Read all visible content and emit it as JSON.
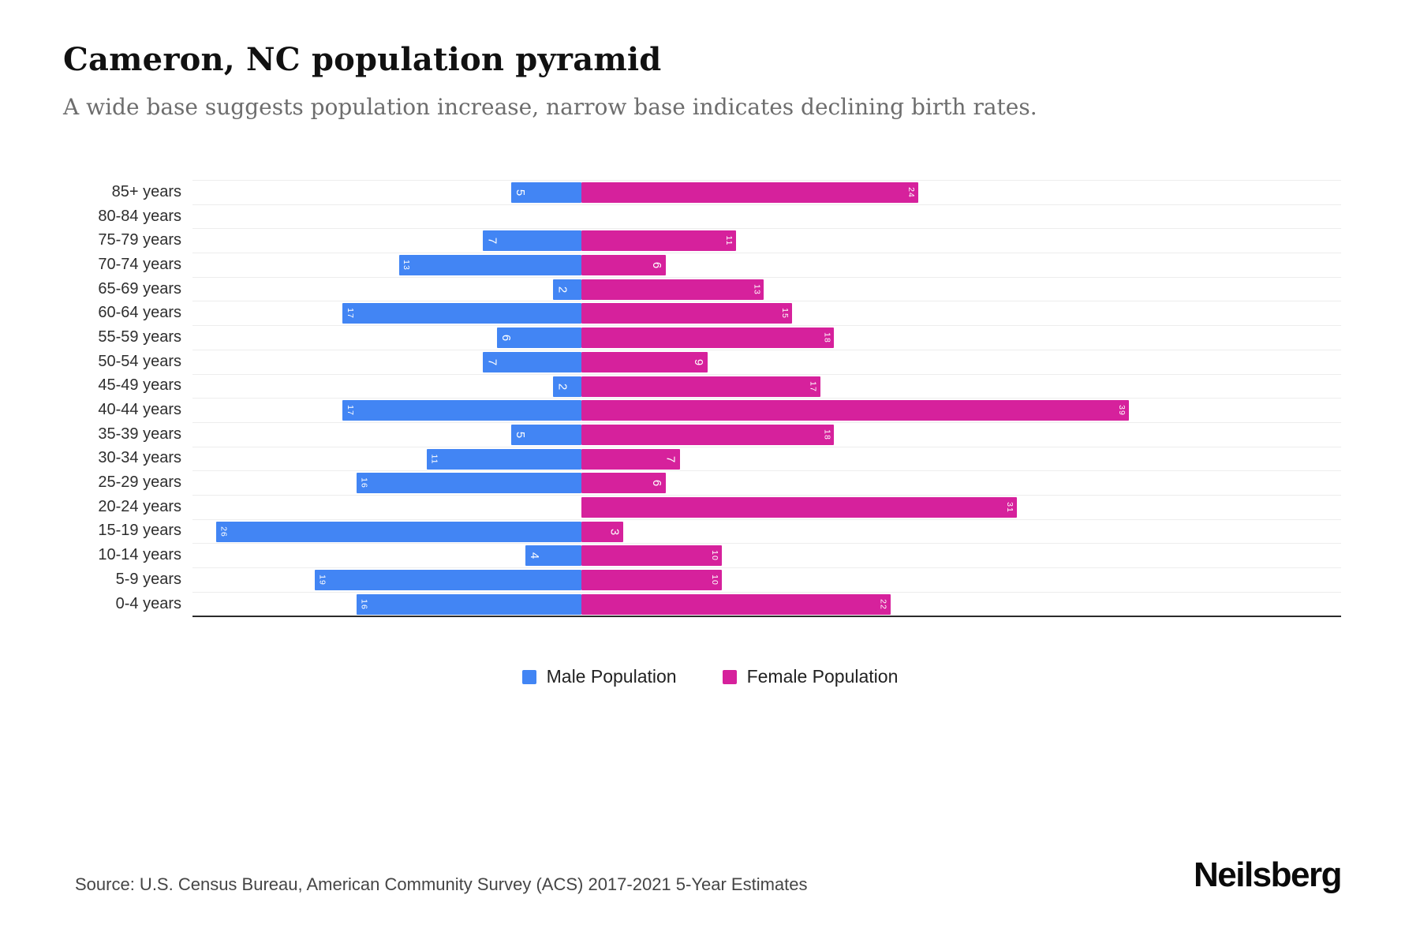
{
  "header": {
    "title": "Cameron, NC population pyramid",
    "subtitle": "A wide base suggests population increase, narrow base indicates declining birth rates."
  },
  "chart_data": {
    "type": "bar",
    "subtype": "population-pyramid",
    "orientation": "horizontal",
    "title": "Cameron, NC population pyramid",
    "categories": [
      "85+ years",
      "80-84 years",
      "75-79 years",
      "70-74 years",
      "65-69 years",
      "60-64 years",
      "55-59 years",
      "50-54 years",
      "45-49 years",
      "40-44 years",
      "35-39 years",
      "30-34 years",
      "25-29 years",
      "20-24 years",
      "15-19 years",
      "10-14 years",
      "5-9 years",
      "0-4 years"
    ],
    "series": [
      {
        "name": "Male Population",
        "side": "left",
        "color": "#4285f4",
        "values": [
          5,
          0,
          7,
          13,
          2,
          17,
          6,
          7,
          2,
          17,
          5,
          11,
          16,
          0,
          26,
          4,
          19,
          16
        ]
      },
      {
        "name": "Female Population",
        "side": "right",
        "color": "#d6219c",
        "values": [
          24,
          0,
          11,
          6,
          13,
          15,
          18,
          9,
          17,
          39,
          18,
          7,
          6,
          31,
          3,
          10,
          10,
          22
        ]
      }
    ],
    "value_labels": "inside bar end, white, rotated 90 degrees",
    "grid": true,
    "legend_position": "bottom-center"
  },
  "legend": {
    "items": [
      {
        "label": "Male Population",
        "color": "#4285f4"
      },
      {
        "label": "Female Population",
        "color": "#d6219c"
      }
    ]
  },
  "footer": {
    "source": "Source: U.S. Census Bureau, American Community Survey (ACS) 2017-2021 5-Year Estimates",
    "brand": "Neilsberg"
  }
}
